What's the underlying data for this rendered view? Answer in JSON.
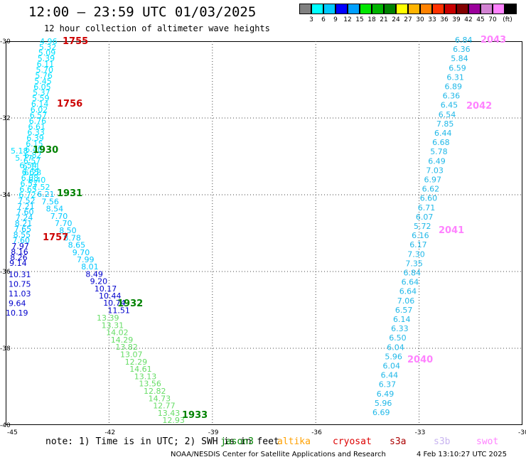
{
  "title": "12:00 – 23:59 UTC 01/03/2025",
  "subtitle": "12 hour collection of altimeter wave heights",
  "legend": {
    "colors": [
      "#808080",
      "#00ffff",
      "#00c8ff",
      "#0000ff",
      "#00a0ff",
      "#00e600",
      "#00b400",
      "#008200",
      "#ffff00",
      "#ffb400",
      "#ff8200",
      "#ff3200",
      "#c80000",
      "#820000",
      "#9b009b",
      "#d282d2",
      "#ff82ff",
      "#000000"
    ],
    "labels": [
      "3",
      "6",
      "9",
      "12",
      "15",
      "18",
      "21",
      "24",
      "27",
      "30",
      "33",
      "36",
      "39",
      "42",
      "45",
      "70",
      "(ft)"
    ]
  },
  "axes": {
    "x_ticks": [
      "-45",
      "-42",
      "-39",
      "-36",
      "-33",
      "-30"
    ],
    "y_ticks": [
      "-30",
      "-32",
      "-34",
      "-36",
      "-38",
      "-40"
    ]
  },
  "passes": [
    {
      "time": "1755",
      "color": "#cc0000"
    },
    {
      "time": "1756",
      "color": "#cc0000"
    },
    {
      "time": "1757",
      "color": "#cc0000"
    },
    {
      "time": "1930",
      "color": "#008200"
    },
    {
      "time": "1931",
      "color": "#008200"
    },
    {
      "time": "1932",
      "color": "#008200"
    },
    {
      "time": "1933",
      "color": "#008200"
    },
    {
      "time": "2040",
      "color": "#ff82ff"
    },
    {
      "time": "2041",
      "color": "#ff82ff"
    },
    {
      "time": "2042",
      "color": "#ff82ff"
    },
    {
      "time": "2043",
      "color": "#ff82ff"
    }
  ],
  "wave_heights": {
    "track_1755": [
      "4.96",
      "5.32",
      "5.09",
      "5.39",
      "6.11",
      "5.70",
      "5.76",
      "5.45",
      "6.05",
      "5.37",
      "5.59",
      "6.14",
      "6.02",
      "6.57",
      "6.76",
      "6.61",
      "6.33",
      "6.39",
      "6.15",
      "6.40",
      "6.82",
      "6.57",
      "6.11",
      "6.65",
      "6.08",
      "6.57",
      "6.65",
      "6.72",
      "7.52",
      "7.21",
      "7.60",
      "7.24",
      "8.21",
      "7.65",
      "8.55",
      "7.60",
      "7.97",
      "8.16",
      "8.26",
      "9.14"
    ],
    "track_1930": [
      "5.18",
      "5.77",
      "6.54",
      "6.28",
      "6.40",
      "7.52",
      "6.21",
      "7.56",
      "8.54",
      "7.70",
      "7.70",
      "8.50",
      "8.78",
      "8.65",
      "9.70",
      "7.99",
      "8.01",
      "8.49",
      "9.20",
      "10.17",
      "10.44",
      "10.74",
      "11.51"
    ],
    "track_1930_dark": [
      "10.31",
      "10.75",
      "11.03",
      "9.64",
      "10.19"
    ],
    "track_1932": [
      "13.39",
      "13.31",
      "14.02",
      "14.29",
      "13.82",
      "13.07",
      "12.29",
      "14.61",
      "13.13",
      "13.56",
      "12.82",
      "14.73",
      "12.77",
      "13.43",
      "12.93"
    ],
    "track_2043": [
      "6.84",
      "6.36",
      "5.84",
      "6.59",
      "6.31",
      "6.89",
      "6.36",
      "6.45",
      "6.54",
      "7.85",
      "6.44",
      "6.68",
      "5.78",
      "6.49",
      "7.03",
      "6.97",
      "6.62",
      "6.60",
      "6.71",
      "6.07",
      "5.72",
      "6.16",
      "6.17",
      "7.30",
      "7.35",
      "6.84",
      "6.64",
      "6.64",
      "7.06",
      "6.57",
      "6.14",
      "6.33",
      "6.50",
      "6.04",
      "5.96",
      "6.04",
      "6.44",
      "6.37",
      "6.49",
      "5.96",
      "6.69"
    ]
  },
  "note": {
    "text": "note: 1) Time is in UTC; 2) SWH is in feet",
    "satellites": [
      {
        "name": "jason3",
        "color": "#008200"
      },
      {
        "name": "altika",
        "color": "#ffa000"
      },
      {
        "name": "cryosat",
        "color": "#dd0000"
      },
      {
        "name": "s3a",
        "color": "#aa0000"
      },
      {
        "name": "s3b",
        "color": "#c8b4f0"
      },
      {
        "name": "swot",
        "color": "#ff82ff"
      }
    ]
  },
  "credit": "NOAA/NESDIS Center for Satellite Applications and Research",
  "stamp": "4 Feb 13:10:27 UTC 2025",
  "colors": {
    "cyan": "#00c8ff",
    "lightcyan": "#00e0ff",
    "navy": "#0000cc",
    "green_light": "#66dd66",
    "track_cyan": "#20b8e8"
  }
}
